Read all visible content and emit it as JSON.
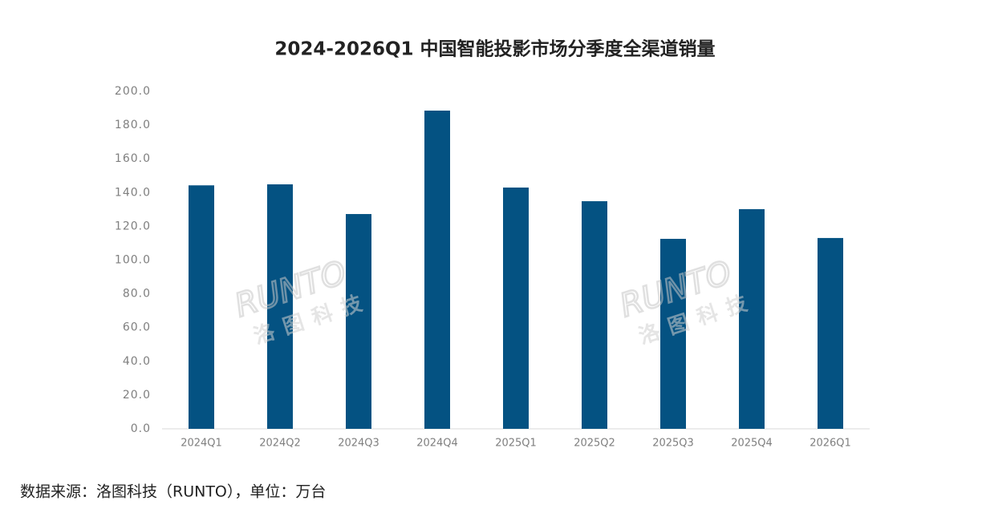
{
  "chart_data": {
    "type": "bar",
    "title": "2024-2026Q1 中国智能投影市场分季度全渠道销量",
    "categories": [
      "2024Q1",
      "2024Q2",
      "2024Q3",
      "2024Q4",
      "2025Q1",
      "2025Q2",
      "2025Q3",
      "2025Q4",
      "2026Q1"
    ],
    "values": [
      144.3,
      144.9,
      127.3,
      188.6,
      143.0,
      134.9,
      112.6,
      130.2,
      113.1
    ],
    "color": "#045282",
    "ylim": [
      0,
      200
    ],
    "yticks": [
      {
        "value": 0,
        "label": "0.0"
      },
      {
        "value": 20,
        "label": "20.0"
      },
      {
        "value": 40,
        "label": "40.0"
      },
      {
        "value": 60,
        "label": "60.0"
      },
      {
        "value": 80,
        "label": "80.0"
      },
      {
        "value": 100,
        "label": "100.0"
      },
      {
        "value": 120,
        "label": "120.0"
      },
      {
        "value": 140,
        "label": "140.0"
      },
      {
        "value": 160,
        "label": "160.0"
      },
      {
        "value": 180,
        "label": "180.0"
      },
      {
        "value": 200,
        "label": "200.0"
      }
    ],
    "grid": false,
    "watermark": [
      "RUNTO",
      "洛图科技"
    ],
    "source": "数据来源：洛图科技（RUNTO），单位：万台"
  }
}
